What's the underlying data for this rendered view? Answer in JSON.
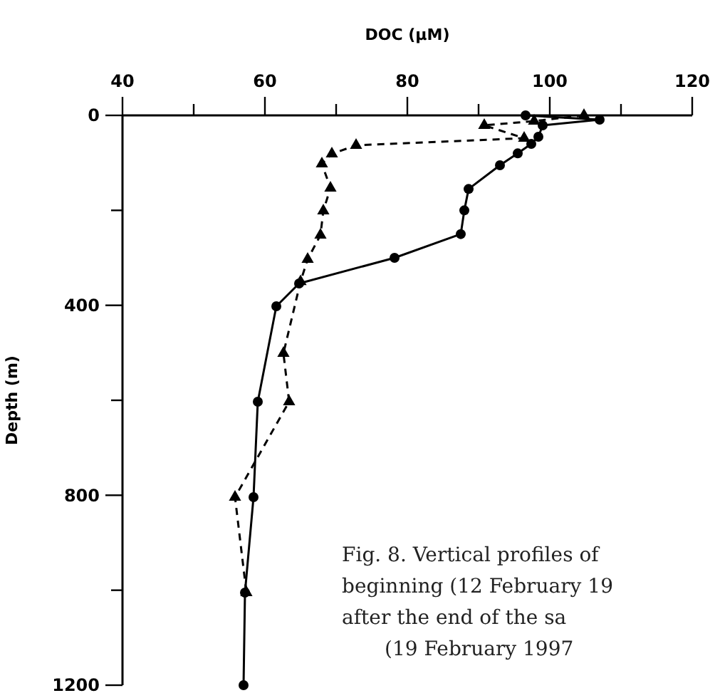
{
  "chart_data": {
    "type": "line",
    "xlabel": "DOC (µM)",
    "ylabel": "Depth (m)",
    "xlim": [
      40,
      120
    ],
    "xticks": [
      40,
      {
        "value": 50,
        "label": null
      },
      60,
      {
        "value": 70,
        "label": null
      },
      80,
      {
        "value": 90,
        "label": null
      },
      100,
      {
        "value": 110,
        "label": null
      },
      120
    ],
    "ylim": [
      1200,
      0
    ],
    "yticks": [
      0,
      {
        "value": 200,
        "label": null
      },
      400,
      {
        "value": 600,
        "label": null
      },
      800,
      {
        "value": 1000,
        "label": null
      },
      1200
    ],
    "series": [
      {
        "color": "#000000",
        "marker": "circle",
        "line_style": "solid",
        "x": [
          96.6,
          107,
          99,
          98.4,
          97.4,
          95.5,
          93,
          88.6,
          88,
          87.5,
          78.2,
          64.8,
          61.6,
          59,
          58.4,
          57.2,
          57
        ],
        "values": [
          0,
          9,
          21,
          45,
          60,
          80,
          105,
          155,
          200,
          250,
          300,
          354,
          402,
          603,
          804,
          1005,
          1200
        ]
      },
      {
        "color": "#000000",
        "marker": "triangle",
        "line_style": "dashed",
        "x": [
          104.8,
          97.8,
          90.8,
          96.4,
          72.8,
          69.4,
          68,
          69.2,
          68.2,
          67.8,
          66,
          65,
          62.6,
          63.4,
          55.8,
          57.4
        ],
        "values": [
          0,
          12,
          21,
          48,
          63,
          81,
          102,
          153,
          201,
          252,
          303,
          350,
          501,
          603,
          804,
          1005
        ]
      }
    ],
    "annotations": [
      "Fig. 8. Vertical profiles of",
      "beginning (12 February 19",
      "after the end of the sa",
      "(19 February 1997"
    ]
  }
}
